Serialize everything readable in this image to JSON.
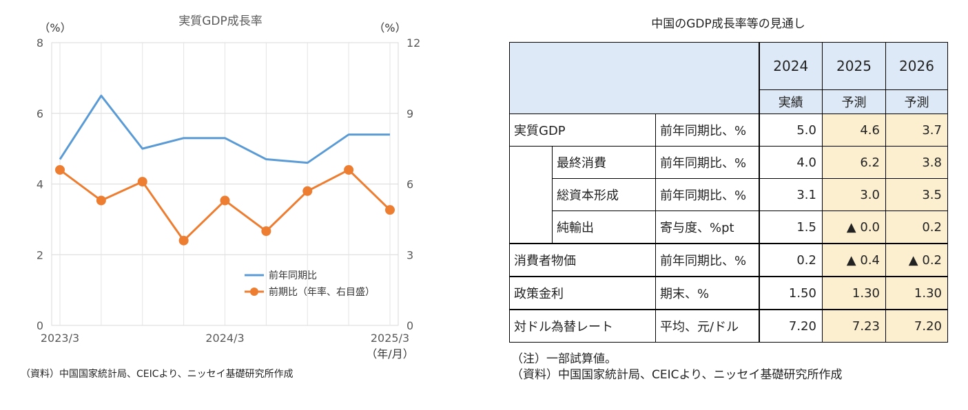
{
  "chart_data": {
    "type": "line",
    "title": "実質GDP成長率",
    "left_axis_unit": "（%）",
    "right_axis_unit": "（%）",
    "x_unit": "（年/月）",
    "x_tick_labels": [
      "2023/3",
      "2024/3",
      "2025/3"
    ],
    "x": [
      "2023/3",
      "2023/6",
      "2023/9",
      "2023/12",
      "2024/3",
      "2024/6",
      "2024/9",
      "2024/12",
      "2025/3"
    ],
    "y_left_ticks": [
      "0",
      "2",
      "4",
      "6",
      "8"
    ],
    "y_right_ticks": [
      "0",
      "3",
      "6",
      "9",
      "12"
    ],
    "ylim_left": [
      0,
      8
    ],
    "ylim_right": [
      0,
      12
    ],
    "grid": true,
    "legend_position": "bottom-right",
    "series": [
      {
        "name": "前年同期比",
        "axis": "left",
        "color": "#5b9bd5",
        "values": [
          4.7,
          6.5,
          5.0,
          5.3,
          5.3,
          4.7,
          4.6,
          5.4,
          5.4
        ]
      },
      {
        "name": "前期比（年率、右目盛）",
        "axis": "right",
        "color": "#ed7d31",
        "values": [
          6.6,
          5.3,
          6.1,
          3.6,
          5.3,
          4.0,
          5.7,
          6.6,
          4.9
        ]
      }
    ]
  },
  "chart_source": "（資料）中国国家統計局、CEICより、ニッセイ基礎研究所作成",
  "table": {
    "title": "中国のGDP成長率等の見通し",
    "years": [
      "2024",
      "2025",
      "2026"
    ],
    "subheads": [
      "実績",
      "予測",
      "予測"
    ],
    "rows": [
      {
        "label": "実質GDP",
        "unit": "前年同期比、%",
        "v": [
          "5.0",
          "4.6",
          "3.7"
        ]
      },
      {
        "label": "最終消費",
        "unit": "前年同期比、%",
        "v": [
          "4.0",
          "6.2",
          "3.8"
        ]
      },
      {
        "label": "総資本形成",
        "unit": "前年同期比、%",
        "v": [
          "3.1",
          "3.0",
          "3.5"
        ]
      },
      {
        "label": "純輸出",
        "unit": "寄与度、%pt",
        "v": [
          "1.5",
          "▲ 0.0",
          "0.2"
        ]
      },
      {
        "label": "消費者物価",
        "unit": "前年同期比、%",
        "v": [
          "0.2",
          "▲ 0.4",
          "▲ 0.2"
        ]
      },
      {
        "label": "政策金利",
        "unit": "期末、%",
        "v": [
          "1.50",
          "1.30",
          "1.30"
        ]
      },
      {
        "label": "対ドル為替レート",
        "unit": "平均、元/ドル",
        "v": [
          "7.20",
          "7.23",
          "7.20"
        ]
      }
    ],
    "note": "（注）一部試算値。",
    "source": "（資料）中国国家統計局、CEICより、ニッセイ基礎研究所作成"
  }
}
